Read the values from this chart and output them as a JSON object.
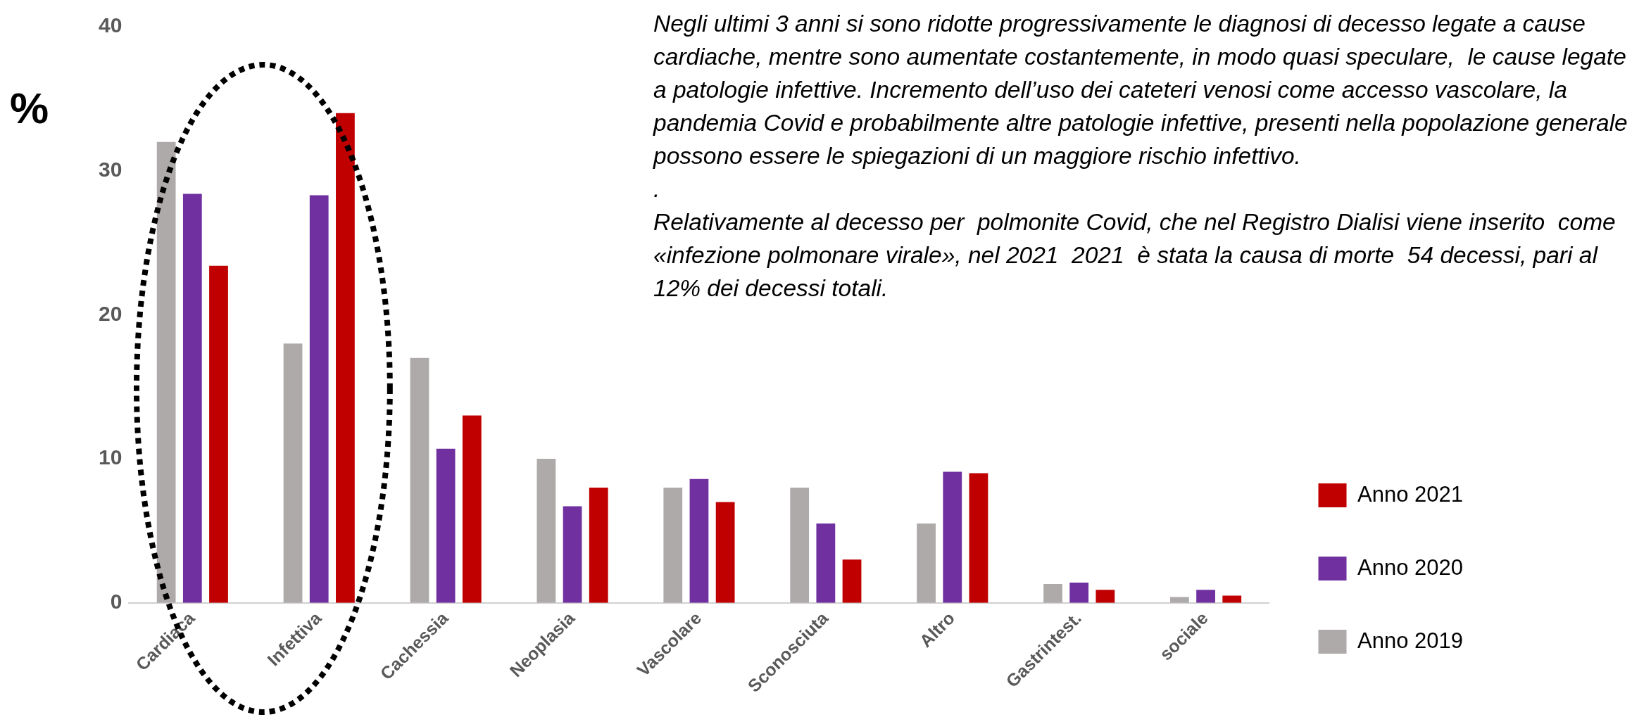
{
  "chart_data": {
    "type": "bar",
    "ylabel": "%",
    "categories": [
      "Cardiaca",
      "Infettiva",
      "Cachessia",
      "Neoplasia",
      "Vascolare",
      "Sconosciuta",
      "Altro",
      "Gastrintest.",
      "sociale"
    ],
    "series": [
      {
        "name": "Anno 2019",
        "color": "#aeaaaa",
        "values": [
          32.0,
          18.0,
          17.0,
          10.0,
          8.0,
          8.0,
          5.5,
          1.3,
          0.4
        ]
      },
      {
        "name": "Anno 2020",
        "color": "#7030a0",
        "values": [
          28.4,
          28.3,
          10.7,
          6.7,
          8.6,
          5.5,
          9.1,
          1.4,
          0.9
        ]
      },
      {
        "name": "Anno 2021",
        "color": "#c00000",
        "values": [
          23.4,
          34.0,
          13.0,
          8.0,
          7.0,
          3.0,
          9.0,
          0.9,
          0.5
        ]
      }
    ],
    "ylim": [
      0,
      40
    ],
    "yticks": [
      0,
      10,
      20,
      30,
      40
    ],
    "grid": false,
    "legend": "right",
    "annotations": [
      "Negli ultimi 3 anni si sono ridotte progressivamente le diagnosi di decesso legate a cause cardiache, mentre sono aumentate costantemente, in modo quasi speculare,  le cause legate a patologie infettive. Incremento dell’uso dei cateteri venosi come accesso vascolare, la pandemia Covid e probabilmente altre patologie infettive, presenti nella popolazione generale possono essere le spiegazioni di un maggiore rischio infettivo.",
      ".",
      "Relativamente al decesso per  polmonite Covid, che nel Registro Dialisi viene inserito  come «infezione polmonare virale», nel 2021  2021  è stata la causa di morte  54 decessi, pari al 12% dei decessi totali."
    ]
  }
}
